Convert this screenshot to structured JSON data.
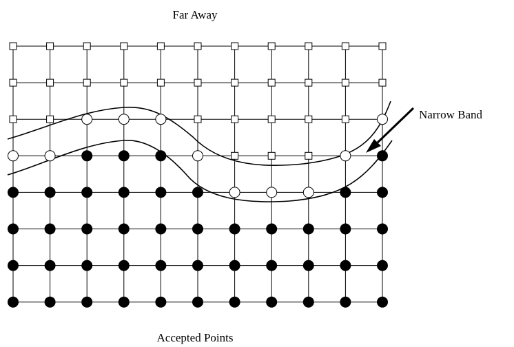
{
  "labels": {
    "top": "Far Away",
    "bottom": "Accepted Points",
    "band": "Narrow Band"
  },
  "grid": {
    "rows": 8,
    "cols": 11
  },
  "point_states": [
    [
      "far",
      "far",
      "far",
      "far",
      "far",
      "far",
      "far",
      "far",
      "far",
      "far",
      "far"
    ],
    [
      "far",
      "far",
      "far",
      "far",
      "far",
      "far",
      "far",
      "far",
      "far",
      "far",
      "far"
    ],
    [
      "far",
      "far",
      "band",
      "band",
      "band",
      "far",
      "far",
      "far",
      "far",
      "far",
      "band"
    ],
    [
      "band",
      "band",
      "accepted",
      "accepted",
      "accepted",
      "band",
      "far",
      "far",
      "far",
      "band",
      "accepted"
    ],
    [
      "accepted",
      "accepted",
      "accepted",
      "accepted",
      "accepted",
      "accepted",
      "band",
      "band",
      "band",
      "accepted",
      "accepted"
    ],
    [
      "accepted",
      "accepted",
      "accepted",
      "accepted",
      "accepted",
      "accepted",
      "accepted",
      "accepted",
      "accepted",
      "accepted",
      "accepted"
    ],
    [
      "accepted",
      "accepted",
      "accepted",
      "accepted",
      "accepted",
      "accepted",
      "accepted",
      "accepted",
      "accepted",
      "accepted",
      "accepted"
    ],
    [
      "accepted",
      "accepted",
      "accepted",
      "accepted",
      "accepted",
      "accepted",
      "accepted",
      "accepted",
      "accepted",
      "accepted",
      "accepted"
    ]
  ],
  "legend": {
    "far": "square",
    "band": "open-circle",
    "accepted": "filled-circle"
  },
  "colors": {
    "ink": "#000000",
    "background": "#ffffff"
  }
}
